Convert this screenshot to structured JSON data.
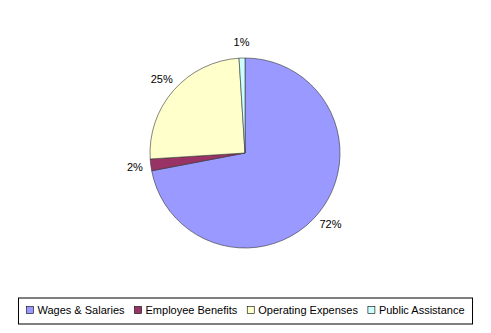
{
  "chart_data": {
    "type": "pie",
    "categories": [
      "Wages & Salaries",
      "Employee Benefits",
      "Operating Expenses",
      "Public Assistance"
    ],
    "values": [
      72,
      2,
      25,
      1
    ],
    "value_labels": [
      "72%",
      "2%",
      "25%",
      "1%"
    ],
    "colors": [
      "#9999ff",
      "#993366",
      "#ffffcc",
      "#ccffff"
    ],
    "data_labels": true,
    "legend": "bottom"
  }
}
